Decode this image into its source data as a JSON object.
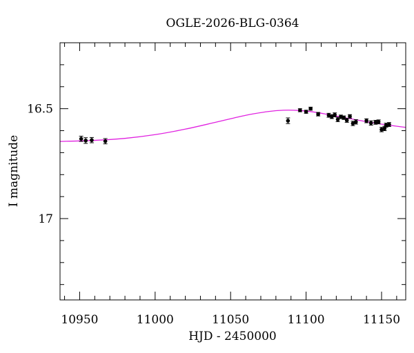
{
  "chart_data": {
    "type": "scatter",
    "title": "OGLE-2026-BLG-0364",
    "xlabel": "HJD - 2450000",
    "ylabel": "I magnitude",
    "xlim": [
      10937,
      11166
    ],
    "ylim": [
      17.37,
      16.2
    ],
    "y_inverted": true,
    "x_major_ticks": [
      10950,
      11000,
      11050,
      11100,
      11150
    ],
    "x_minor_step": 10,
    "y_major_ticks": [
      16.5,
      17
    ],
    "y_minor_step": 0.1,
    "grid": false,
    "series": [
      {
        "kind": "points",
        "color": "#000000",
        "points": [
          {
            "x": 10951,
            "y": 16.637,
            "err": 0.012
          },
          {
            "x": 10954,
            "y": 16.645,
            "err": 0.013
          },
          {
            "x": 10958,
            "y": 16.643,
            "err": 0.012
          },
          {
            "x": 10967,
            "y": 16.648,
            "err": 0.012
          },
          {
            "x": 11088,
            "y": 16.555,
            "err": 0.013
          },
          {
            "x": 11096,
            "y": 16.507,
            "err": 0.007
          },
          {
            "x": 11100,
            "y": 16.514,
            "err": 0.007
          },
          {
            "x": 11103,
            "y": 16.5,
            "err": 0.007
          },
          {
            "x": 11108,
            "y": 16.525,
            "err": 0.008
          },
          {
            "x": 11115,
            "y": 16.53,
            "err": 0.009
          },
          {
            "x": 11117,
            "y": 16.536,
            "err": 0.009
          },
          {
            "x": 11119,
            "y": 16.528,
            "err": 0.009
          },
          {
            "x": 11121,
            "y": 16.549,
            "err": 0.01
          },
          {
            "x": 11123,
            "y": 16.537,
            "err": 0.008
          },
          {
            "x": 11125,
            "y": 16.541,
            "err": 0.008
          },
          {
            "x": 11127,
            "y": 16.553,
            "err": 0.009
          },
          {
            "x": 11129,
            "y": 16.535,
            "err": 0.008
          },
          {
            "x": 11131,
            "y": 16.567,
            "err": 0.01
          },
          {
            "x": 11133,
            "y": 16.56,
            "err": 0.01
          },
          {
            "x": 11140,
            "y": 16.555,
            "err": 0.009
          },
          {
            "x": 11143,
            "y": 16.565,
            "err": 0.01
          },
          {
            "x": 11146,
            "y": 16.562,
            "err": 0.009
          },
          {
            "x": 11148,
            "y": 16.56,
            "err": 0.009
          },
          {
            "x": 11150,
            "y": 16.595,
            "err": 0.01
          },
          {
            "x": 11152,
            "y": 16.59,
            "err": 0.01
          },
          {
            "x": 11153,
            "y": 16.575,
            "err": 0.009
          },
          {
            "x": 11155,
            "y": 16.572,
            "err": 0.009
          }
        ]
      },
      {
        "kind": "line",
        "color": "#e020e0",
        "points": [
          {
            "x": 10937,
            "y": 16.649
          },
          {
            "x": 10960,
            "y": 16.644
          },
          {
            "x": 10980,
            "y": 16.635
          },
          {
            "x": 11000,
            "y": 16.618
          },
          {
            "x": 11020,
            "y": 16.593
          },
          {
            "x": 11040,
            "y": 16.562
          },
          {
            "x": 11060,
            "y": 16.53
          },
          {
            "x": 11075,
            "y": 16.513
          },
          {
            "x": 11085,
            "y": 16.507
          },
          {
            "x": 11095,
            "y": 16.508
          },
          {
            "x": 11105,
            "y": 16.515
          },
          {
            "x": 11115,
            "y": 16.527
          },
          {
            "x": 11125,
            "y": 16.54
          },
          {
            "x": 11135,
            "y": 16.553
          },
          {
            "x": 11145,
            "y": 16.565
          },
          {
            "x": 11155,
            "y": 16.575
          },
          {
            "x": 11166,
            "y": 16.585
          }
        ]
      }
    ]
  }
}
